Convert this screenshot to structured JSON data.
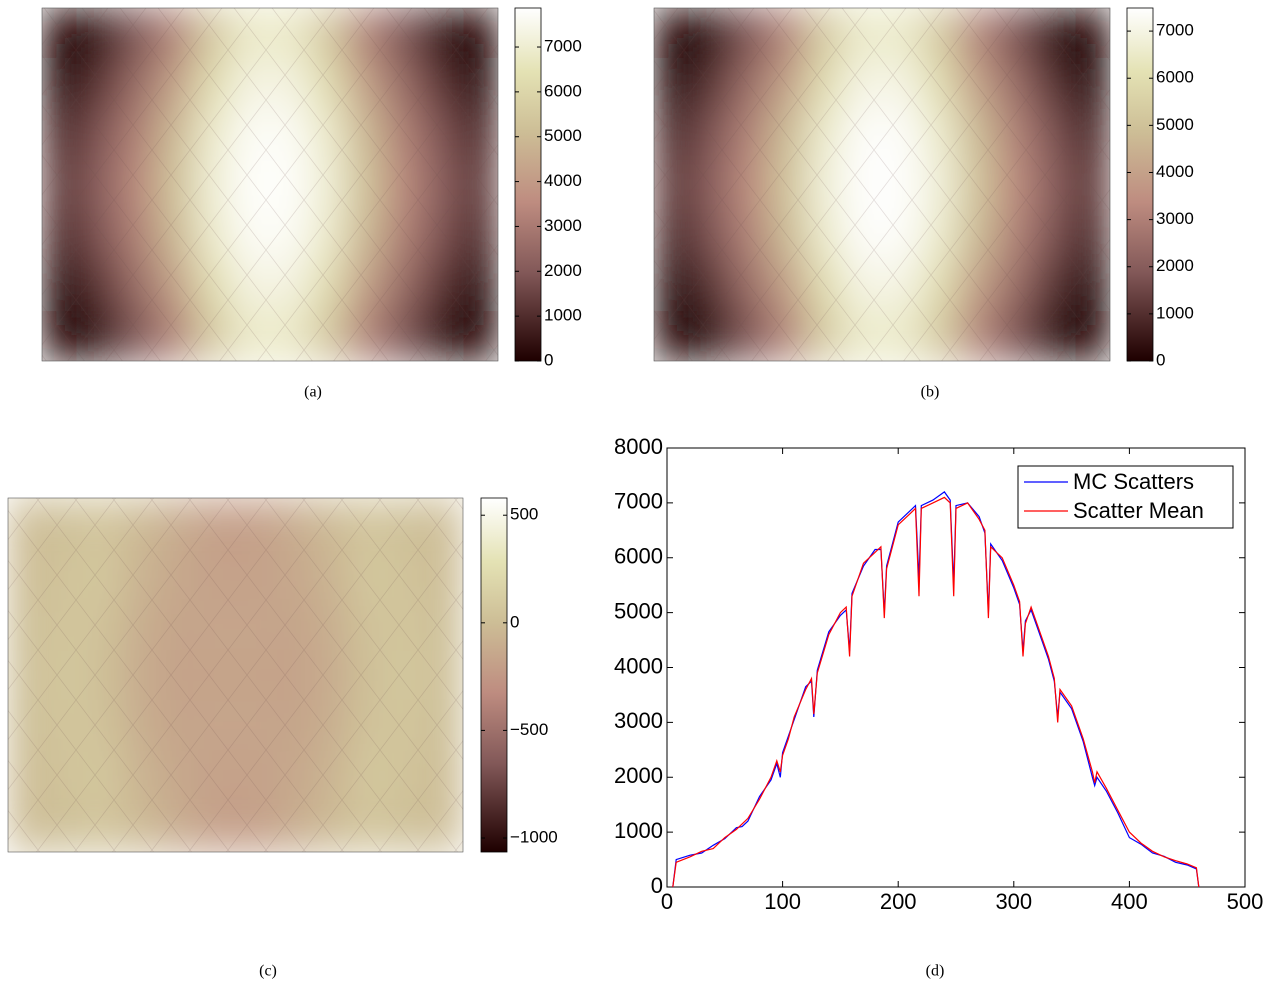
{
  "chart_data": [
    {
      "type": "heatmap",
      "caption": "(a)",
      "colormap": "pink",
      "z": [
        [
          0,
          300,
          1800,
          3200,
          5500,
          6800,
          6800,
          5500,
          3200,
          1800,
          300,
          0
        ],
        [
          200,
          1200,
          2600,
          4200,
          6300,
          7300,
          7300,
          6300,
          4200,
          2600,
          1200,
          200
        ],
        [
          900,
          1900,
          3200,
          5000,
          6900,
          7700,
          7700,
          6900,
          5000,
          3200,
          1900,
          900
        ],
        [
          1300,
          2200,
          3500,
          5300,
          7100,
          7800,
          7800,
          7100,
          5300,
          3500,
          2200,
          1300
        ],
        [
          900,
          1900,
          3200,
          5000,
          6900,
          7700,
          7700,
          6900,
          5000,
          3200,
          1900,
          900
        ],
        [
          200,
          1200,
          2600,
          4200,
          6300,
          7300,
          7300,
          6300,
          4200,
          2600,
          1200,
          200
        ],
        [
          0,
          300,
          1800,
          3200,
          5500,
          6800,
          6800,
          5500,
          3200,
          1800,
          300,
          0
        ]
      ],
      "zlim": [
        0,
        7870
      ],
      "zticks": [
        0,
        1000,
        2000,
        3000,
        4000,
        5000,
        6000,
        7000
      ]
    },
    {
      "type": "heatmap",
      "caption": "(b)",
      "colormap": "pink",
      "z": [
        [
          0,
          250,
          1700,
          3100,
          5300,
          6500,
          6500,
          5300,
          3100,
          1700,
          250,
          0
        ],
        [
          150,
          1100,
          2500,
          4000,
          6000,
          7000,
          7000,
          6000,
          4000,
          2500,
          1100,
          150
        ],
        [
          800,
          1800,
          3100,
          4800,
          6600,
          7400,
          7400,
          6600,
          4800,
          3100,
          1800,
          800
        ],
        [
          1200,
          2100,
          3400,
          5100,
          6800,
          7450,
          7450,
          6800,
          5100,
          3400,
          2100,
          1200
        ],
        [
          800,
          1800,
          3100,
          4800,
          6600,
          7400,
          7400,
          6600,
          4800,
          3100,
          1800,
          800
        ],
        [
          150,
          1100,
          2500,
          4000,
          6000,
          7000,
          7000,
          6000,
          4000,
          2500,
          1100,
          150
        ],
        [
          0,
          250,
          1700,
          3100,
          5300,
          6500,
          6500,
          5300,
          3100,
          1700,
          250,
          0
        ]
      ],
      "zlim": [
        0,
        7490
      ],
      "zticks": [
        0,
        1000,
        2000,
        3000,
        4000,
        5000,
        6000,
        7000
      ]
    },
    {
      "type": "heatmap",
      "caption": "(c)",
      "colormap": "pink",
      "z": [
        [
          0,
          20,
          60,
          -20,
          -120,
          -200,
          -200,
          -120,
          -20,
          60,
          20,
          0
        ],
        [
          0,
          40,
          80,
          -60,
          -150,
          -180,
          -180,
          -150,
          -60,
          80,
          40,
          0
        ],
        [
          10,
          60,
          40,
          -100,
          -170,
          -160,
          -160,
          -170,
          -100,
          40,
          60,
          10
        ],
        [
          20,
          80,
          20,
          -120,
          -180,
          -170,
          -170,
          -180,
          -120,
          20,
          80,
          20
        ],
        [
          10,
          60,
          40,
          -100,
          -170,
          -160,
          -160,
          -170,
          -100,
          40,
          60,
          10
        ],
        [
          0,
          40,
          80,
          -60,
          -150,
          -180,
          -180,
          -150,
          -60,
          80,
          40,
          0
        ],
        [
          0,
          20,
          60,
          -20,
          -120,
          -200,
          -200,
          -120,
          -20,
          60,
          20,
          0
        ]
      ],
      "zlim": [
        -1065,
        580
      ],
      "zticks": [
        {
          "value": -1000,
          "label": "−1000"
        },
        {
          "value": -500,
          "label": "−500"
        },
        0,
        500
      ]
    },
    {
      "type": "line",
      "caption": "(d)",
      "legend": "upper right",
      "x": [
        5,
        8,
        20,
        30,
        40,
        50,
        60,
        65,
        70,
        80,
        90,
        95,
        98,
        100,
        105,
        110,
        120,
        125,
        127,
        130,
        140,
        150,
        155,
        158,
        160,
        170,
        180,
        185,
        188,
        190,
        200,
        210,
        215,
        218,
        220,
        230,
        240,
        245,
        248,
        250,
        260,
        270,
        275,
        278,
        280,
        290,
        300,
        305,
        308,
        310,
        315,
        320,
        330,
        335,
        338,
        340,
        350,
        360,
        368,
        370,
        372,
        380,
        390,
        400,
        410,
        420,
        430,
        440,
        450,
        458,
        460
      ],
      "series": [
        {
          "name": "MC Scatters",
          "color": "#0000ff",
          "values": [
            0,
            500,
            580,
            620,
            760,
            880,
            1080,
            1100,
            1200,
            1650,
            1950,
            2250,
            2000,
            2450,
            2750,
            3050,
            3650,
            3750,
            3100,
            3950,
            4650,
            4950,
            5050,
            4300,
            5350,
            5850,
            6150,
            6150,
            5000,
            5850,
            6650,
            6850,
            6950,
            5600,
            6950,
            7050,
            7200,
            7050,
            5500,
            6950,
            7000,
            6750,
            6450,
            5000,
            6250,
            5950,
            5450,
            5150,
            4300,
            4850,
            5050,
            4750,
            4150,
            3750,
            3100,
            3550,
            3250,
            2650,
            2000,
            1850,
            2000,
            1750,
            1350,
            900,
            780,
            620,
            560,
            450,
            400,
            330,
            0
          ]
        },
        {
          "name": "Scatter Mean",
          "color": "#ff0000",
          "values": [
            0,
            450,
            550,
            650,
            700,
            900,
            1050,
            1150,
            1250,
            1600,
            2000,
            2300,
            2100,
            2400,
            2700,
            3100,
            3600,
            3800,
            3150,
            3900,
            4600,
            5000,
            5100,
            4200,
            5300,
            5900,
            6100,
            6200,
            4900,
            5800,
            6600,
            6800,
            6900,
            5300,
            6900,
            7000,
            7100,
            7000,
            5300,
            6900,
            7000,
            6700,
            6500,
            4900,
            6200,
            6000,
            5500,
            5200,
            4200,
            4800,
            5100,
            4800,
            4200,
            3800,
            3000,
            3600,
            3300,
            2700,
            2100,
            1900,
            2100,
            1800,
            1400,
            1000,
            800,
            650,
            550,
            480,
            420,
            350,
            0
          ]
        }
      ],
      "xlim": [
        0,
        500
      ],
      "xticks": [
        0,
        100,
        200,
        300,
        400,
        500
      ],
      "ylim": [
        0,
        8000
      ],
      "yticks": [
        0,
        1000,
        2000,
        3000,
        4000,
        5000,
        6000,
        7000,
        8000
      ]
    }
  ]
}
